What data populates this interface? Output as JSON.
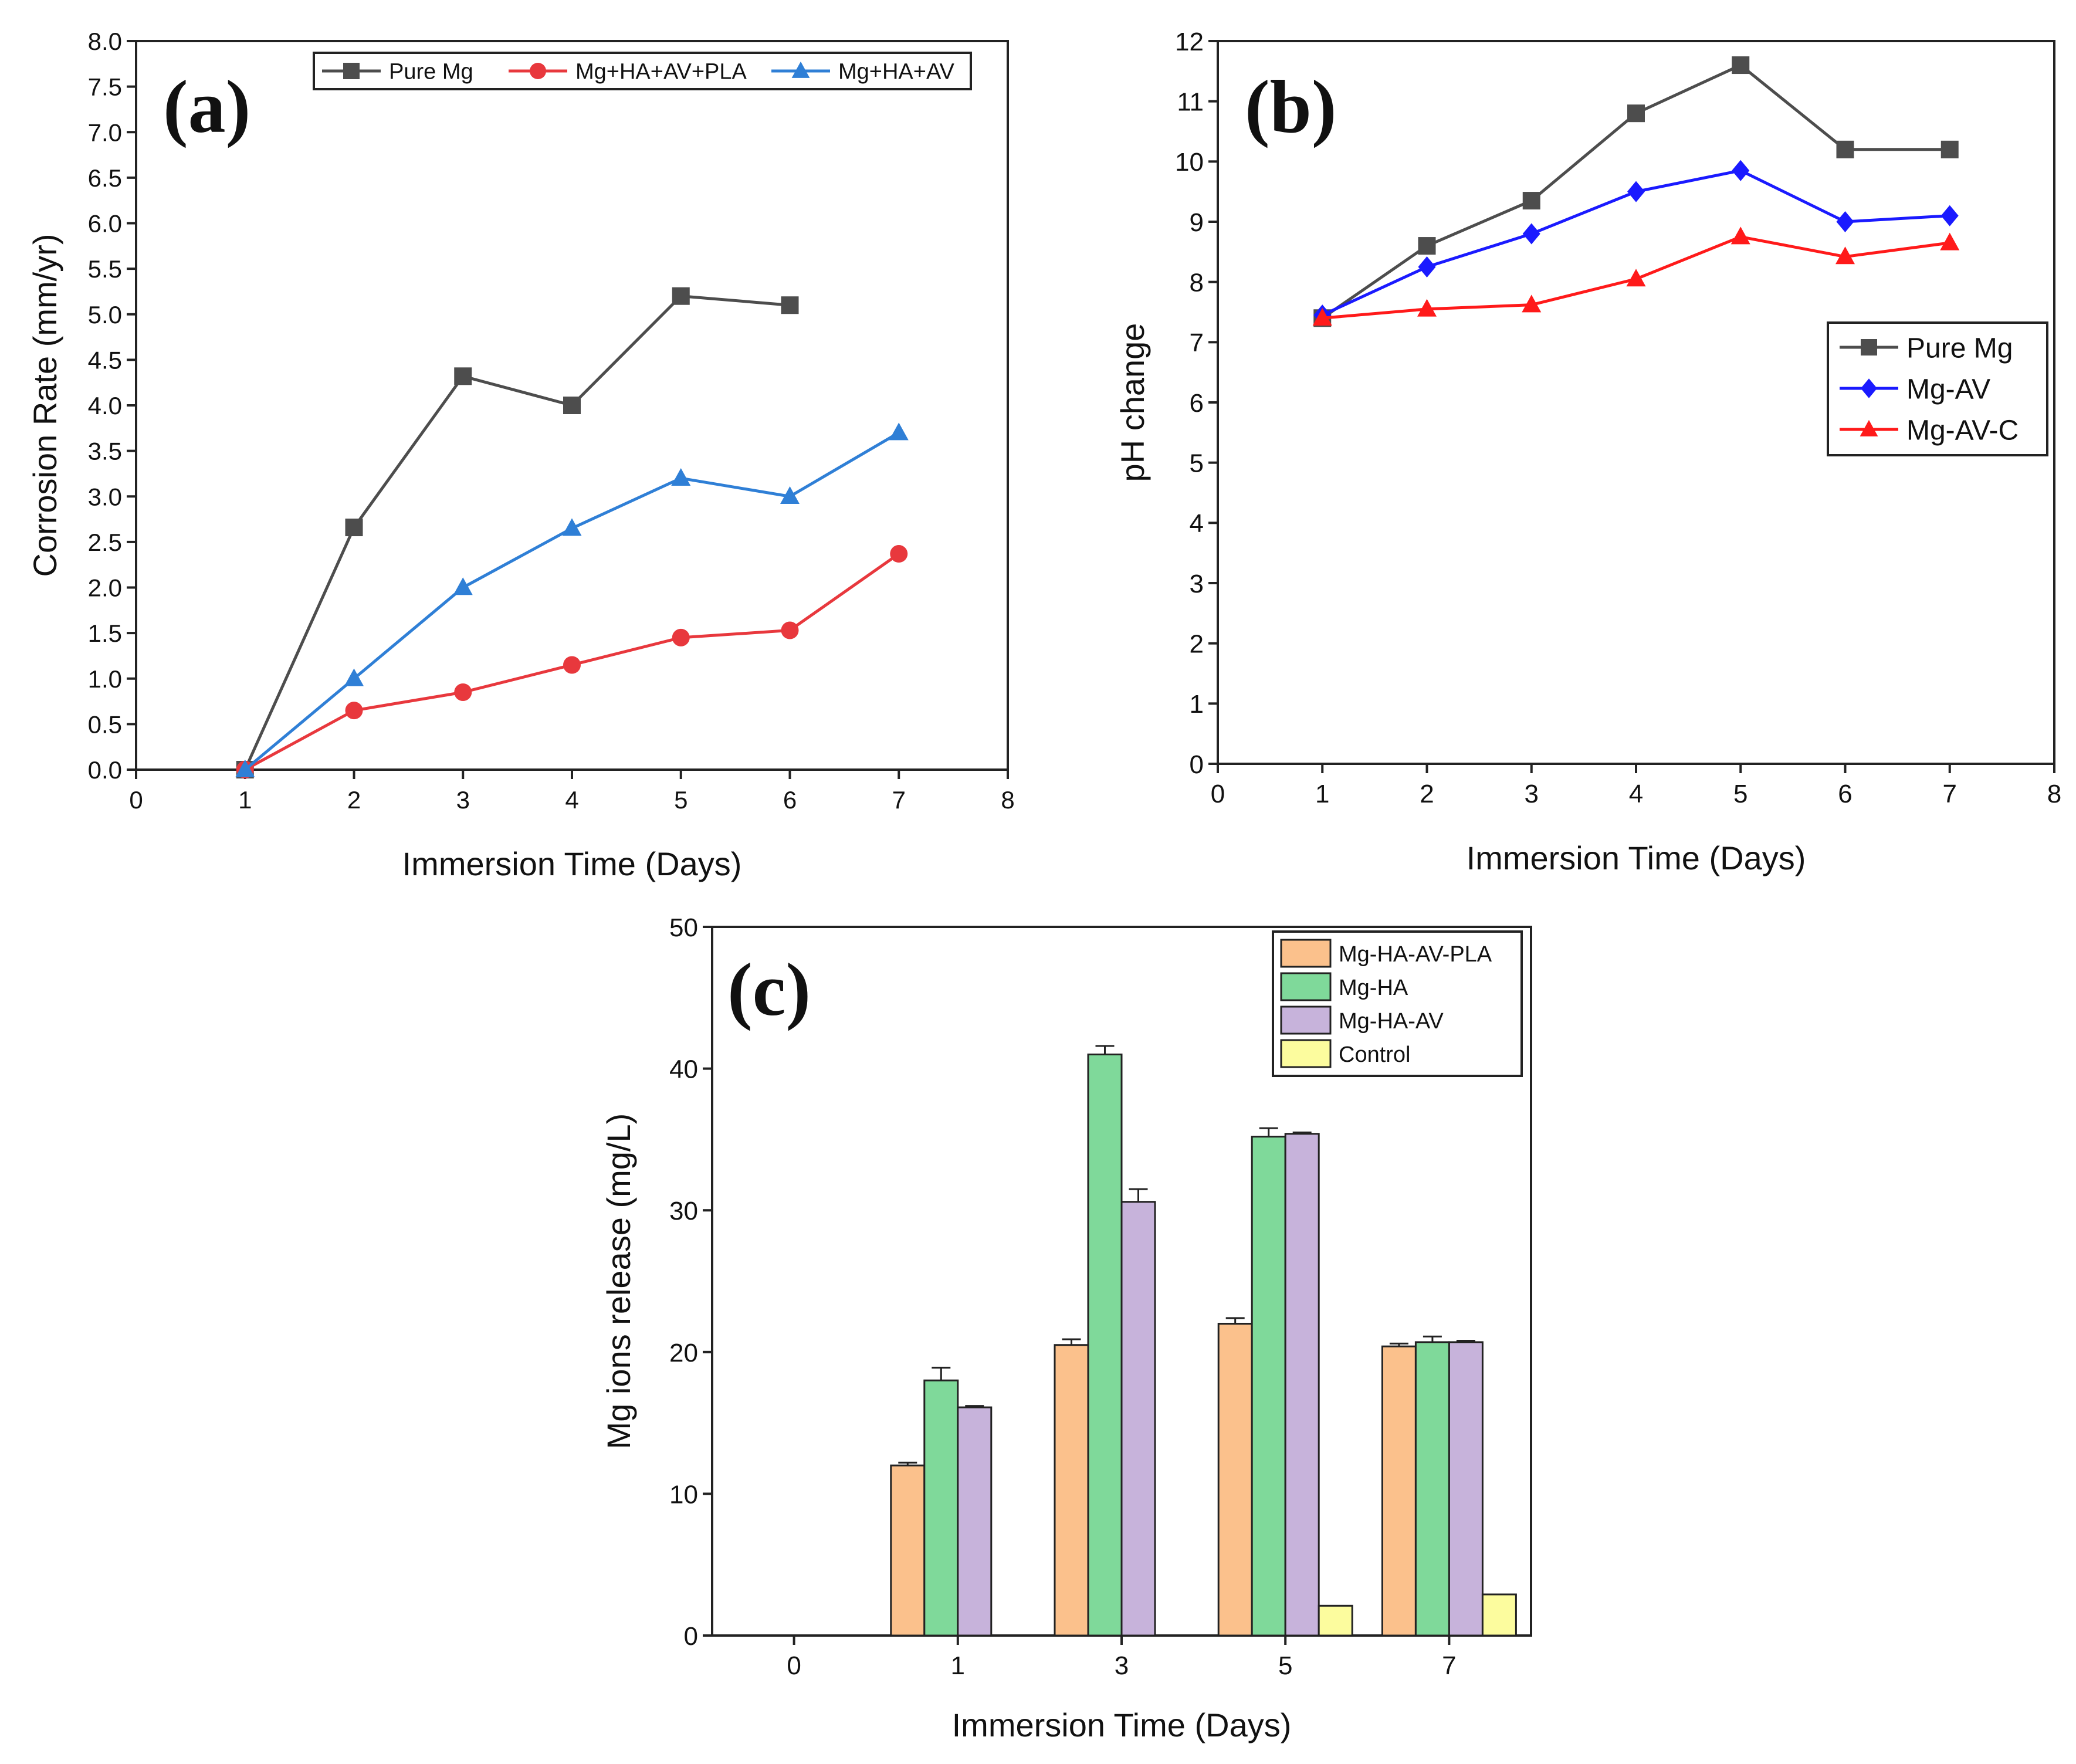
{
  "chart_data": [
    {
      "type": "line",
      "panel_label": "(a)",
      "title": "",
      "xlabel": "Immersion Time (Days)",
      "ylabel": "Corrosion Rate (mm/yr)",
      "xlim": [
        0,
        8
      ],
      "ylim": [
        0,
        8
      ],
      "xticks": [
        "0",
        "1",
        "2",
        "3",
        "4",
        "5",
        "6",
        "7",
        "8"
      ],
      "yticks": [
        "0.0",
        "0.5",
        "1.0",
        "1.5",
        "2.0",
        "2.5",
        "3.0",
        "3.5",
        "4.0",
        "4.5",
        "5.0",
        "5.5",
        "6.0",
        "6.5",
        "7.0",
        "7.5",
        "8.0"
      ],
      "legend_position": "top",
      "series": [
        {
          "name": "Pure Mg",
          "marker": "square",
          "color": "#4d4d4d",
          "x": [
            1,
            2,
            3,
            4,
            5,
            6
          ],
          "y": [
            0.0,
            2.66,
            4.32,
            4.0,
            5.2,
            5.1
          ]
        },
        {
          "name": "Mg+HA+AV+PLA",
          "marker": "circle",
          "color": "#e8383d",
          "x": [
            1,
            2,
            3,
            4,
            5,
            6,
            7
          ],
          "y": [
            0.0,
            0.65,
            0.85,
            1.15,
            1.45,
            1.53,
            2.37
          ]
        },
        {
          "name": "Mg+HA+AV",
          "marker": "triangle",
          "color": "#2f7fd6",
          "x": [
            1,
            2,
            3,
            4,
            5,
            6,
            7
          ],
          "y": [
            0.0,
            1.0,
            2.0,
            2.65,
            3.2,
            3.0,
            3.7
          ]
        }
      ]
    },
    {
      "type": "line",
      "panel_label": "(b)",
      "title": "",
      "xlabel": "Immersion Time (Days)",
      "ylabel": "pH change",
      "xlim": [
        0,
        8
      ],
      "ylim": [
        0,
        12
      ],
      "xticks": [
        "0",
        "1",
        "2",
        "3",
        "4",
        "5",
        "6",
        "7",
        "8"
      ],
      "yticks": [
        "0",
        "1",
        "2",
        "3",
        "4",
        "5",
        "6",
        "7",
        "8",
        "9",
        "10",
        "11",
        "12"
      ],
      "legend_position": "right",
      "series": [
        {
          "name": "Pure Mg",
          "marker": "square",
          "color": "#4d4d4d",
          "x": [
            1,
            2,
            3,
            4,
            5,
            6,
            7
          ],
          "y": [
            7.4,
            8.6,
            9.35,
            10.8,
            11.6,
            10.2,
            10.2
          ]
        },
        {
          "name": "Mg-AV",
          "marker": "diamond",
          "color": "#1a1aff",
          "x": [
            1,
            2,
            3,
            4,
            5,
            6,
            7
          ],
          "y": [
            7.45,
            8.25,
            8.8,
            9.5,
            9.85,
            9.0,
            9.1
          ]
        },
        {
          "name": "Mg-AV-C",
          "marker": "triangle",
          "color": "#ff1a1a",
          "x": [
            1,
            2,
            3,
            4,
            5,
            6,
            7
          ],
          "y": [
            7.4,
            7.55,
            7.62,
            8.05,
            8.75,
            8.42,
            8.65
          ]
        }
      ]
    },
    {
      "type": "bar",
      "panel_label": "(c)",
      "title": "",
      "xlabel": "Immersion Time (Days)",
      "ylabel": "Mg ions release (mg/L)",
      "categories": [
        "0",
        "1",
        "3",
        "5",
        "7"
      ],
      "ylim": [
        0,
        50
      ],
      "yticks": [
        "0",
        "10",
        "20",
        "30",
        "40",
        "50"
      ],
      "legend_position": "top-right",
      "series": [
        {
          "name": "Mg-HA-AV-PLA",
          "color": "#fbc18c",
          "values": [
            0,
            12.0,
            20.5,
            22.0,
            20.4
          ],
          "errors": [
            0,
            0.2,
            0.4,
            0.4,
            0.2
          ]
        },
        {
          "name": "Mg-HA",
          "color": "#7fd99a",
          "values": [
            0,
            18.0,
            41.0,
            35.2,
            20.7
          ],
          "errors": [
            0,
            0.9,
            0.6,
            0.6,
            0.4
          ]
        },
        {
          "name": "Mg-HA-AV",
          "color": "#c7b3db",
          "values": [
            0,
            16.1,
            30.6,
            35.4,
            20.7
          ],
          "errors": [
            0,
            0.1,
            0.9,
            0.1,
            0.1
          ]
        },
        {
          "name": "Control",
          "color": "#fcfc9e",
          "values": [
            0,
            0,
            0,
            2.1,
            2.9
          ],
          "errors": [
            0,
            0,
            0,
            0,
            0
          ]
        }
      ]
    }
  ]
}
